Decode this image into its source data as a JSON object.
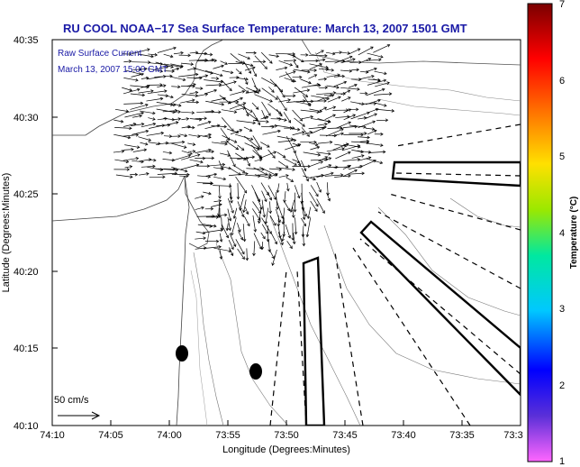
{
  "title": "RU COOL  NOAA−17  Sea Surface Temperature:  March 13, 2007 1501 GMT",
  "legend": {
    "line1": "Raw Surface Current",
    "line2": "March 13, 2007 15:00 GMT"
  },
  "scale_label": "50 cm/s",
  "x_axis": {
    "label": "Longitude (Degrees:Minutes)",
    "ticks": [
      "74:10",
      "74:05",
      "74:00",
      "73:55",
      "73:50",
      "73:45",
      "73:40",
      "73:35",
      "73:3"
    ]
  },
  "y_axis": {
    "label": "Latitude (Degrees:Minutes)",
    "ticks": [
      "40:35",
      "40:30",
      "40:25",
      "40:20",
      "40:15",
      "40:10"
    ]
  },
  "colorbar": {
    "label": "Temperature (°C)",
    "ticks": [
      "7",
      "6",
      "5",
      "4",
      "3",
      "2",
      "1"
    ],
    "colors": [
      "#ff66ff",
      "#5a2fd8",
      "#0000ff",
      "#00c8ff",
      "#00e8a0",
      "#9be800",
      "#ffe000",
      "#ff8000",
      "#ff0000",
      "#7a0000"
    ]
  },
  "colors": {
    "title": "#1a1aa6",
    "legend_text": "#1a1aa6"
  }
}
